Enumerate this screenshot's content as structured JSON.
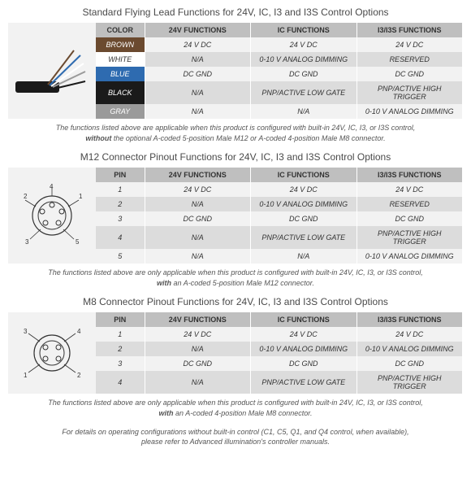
{
  "section1": {
    "title": "Standard Flying Lead Functions for 24V, IC, I3 and I3S Control Options",
    "columns": [
      "COLOR",
      "24V FUNCTIONS",
      "IC FUNCTIONS",
      "I3/I3S FUNCTIONS"
    ],
    "rows": [
      {
        "key": "BROWN",
        "bg": "#6b4a2f",
        "txt": "#ffffff",
        "c24": "24 V DC",
        "cic": "24 V DC",
        "ci3": "24 V DC"
      },
      {
        "key": "WHITE",
        "bg": "#ffffff",
        "txt": "#333333",
        "c24": "N/A",
        "cic": "0-10 V ANALOG DIMMING",
        "ci3": "RESERVED"
      },
      {
        "key": "BLUE",
        "bg": "#2e6bb0",
        "txt": "#ffffff",
        "c24": "DC GND",
        "cic": "DC GND",
        "ci3": "DC GND"
      },
      {
        "key": "BLACK",
        "bg": "#1a1a1a",
        "txt": "#ffffff",
        "c24": "N/A",
        "cic": "PNP/ACTIVE LOW GATE",
        "ci3": "PNP/ACTIVE HIGH TRIGGER"
      },
      {
        "key": "GRAY",
        "bg": "#9a9a9a",
        "txt": "#ffffff",
        "c24": "N/A",
        "cic": "N/A",
        "ci3": "0-10 V ANALOG DIMMING"
      }
    ],
    "note1": "The functions listed above are applicable when this product is configured with built-in 24V, IC, I3, or I3S control,",
    "note2a": "without",
    "note2b": " the optional A-coded 5-position Male M12 or A-coded 4-position Male M8 connector."
  },
  "section2": {
    "title": "M12 Connector Pinout Functions for 24V, IC, I3 and I3S Control Options",
    "columns": [
      "PIN",
      "24V FUNCTIONS",
      "IC FUNCTIONS",
      "I3/I3S FUNCTIONS"
    ],
    "rows": [
      {
        "key": "1",
        "c24": "24 V DC",
        "cic": "24 V DC",
        "ci3": "24 V DC"
      },
      {
        "key": "2",
        "c24": "N/A",
        "cic": "0-10 V ANALOG DIMMING",
        "ci3": "RESERVED"
      },
      {
        "key": "3",
        "c24": "DC GND",
        "cic": "DC GND",
        "ci3": "DC GND"
      },
      {
        "key": "4",
        "c24": "N/A",
        "cic": "PNP/ACTIVE LOW GATE",
        "ci3": "PNP/ACTIVE HIGH TRIGGER"
      },
      {
        "key": "5",
        "c24": "N/A",
        "cic": "N/A",
        "ci3": "0-10 V ANALOG DIMMING"
      }
    ],
    "note1": "The functions listed above are only applicable when this product is configured with built-in 24V, IC, I3, or I3S control,",
    "note2a": "with",
    "note2b": " an A-coded 5-position Male M12 connector."
  },
  "section3": {
    "title": "M8 Connector Pinout Functions for 24V, IC, I3 and I3S Control Options",
    "columns": [
      "PIN",
      "24V FUNCTIONS",
      "IC FUNCTIONS",
      "I3/I3S FUNCTIONS"
    ],
    "rows": [
      {
        "key": "1",
        "c24": "24 V DC",
        "cic": "24 V DC",
        "ci3": "24 V DC"
      },
      {
        "key": "2",
        "c24": "N/A",
        "cic": "0-10 V ANALOG DIMMING",
        "ci3": "0-10 V ANALOG DIMMING"
      },
      {
        "key": "3",
        "c24": "DC GND",
        "cic": "DC GND",
        "ci3": "DC GND"
      },
      {
        "key": "4",
        "c24": "N/A",
        "cic": "PNP/ACTIVE LOW GATE",
        "ci3": "PNP/ACTIVE HIGH TRIGGER"
      }
    ],
    "note1": "The functions listed above are only applicable when this product is configured with built-in 24V, IC, I3, or I3S control,",
    "note2a": "with",
    "note2b": " an A-coded 4-position Male M8 connector."
  },
  "footer": {
    "l1": "For details on operating configurations without built-in control (C1, C5, Q1, and Q4 control, when available),",
    "l2": "please refer to Advanced illumination's controller manuals."
  }
}
